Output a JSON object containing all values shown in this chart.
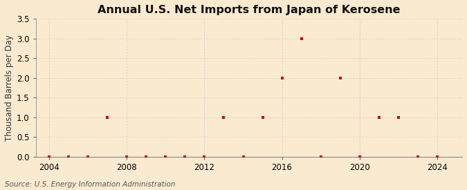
{
  "title": "Annual U.S. Net Imports from Japan of Kerosene",
  "ylabel": "Thousand Barrels per Day",
  "source": "Source: U.S. Energy Information Administration",
  "background_color": "#faebd0",
  "plot_background_color": "#faebd0",
  "marker_color": "#cc0000",
  "marker_size": 3.5,
  "xlim": [
    2003.3,
    2025.3
  ],
  "ylim": [
    0.0,
    3.5
  ],
  "yticks": [
    0.0,
    0.5,
    1.0,
    1.5,
    2.0,
    2.5,
    3.0,
    3.5
  ],
  "xticks": [
    2004,
    2008,
    2012,
    2016,
    2020,
    2024
  ],
  "years": [
    2004,
    2005,
    2006,
    2007,
    2008,
    2009,
    2010,
    2011,
    2012,
    2013,
    2014,
    2015,
    2016,
    2017,
    2018,
    2019,
    2020,
    2021,
    2022,
    2023,
    2024
  ],
  "values": [
    0.0,
    0.0,
    0.0,
    1.0,
    0.0,
    0.0,
    0.0,
    0.0,
    0.0,
    1.0,
    0.0,
    1.0,
    2.0,
    3.0,
    0.0,
    2.0,
    0.0,
    1.0,
    1.0,
    0.0,
    0.0
  ],
  "grid_color": "#c8c8c8",
  "title_fontsize": 11.5,
  "label_fontsize": 8.5,
  "tick_fontsize": 8.5,
  "source_fontsize": 7.5
}
